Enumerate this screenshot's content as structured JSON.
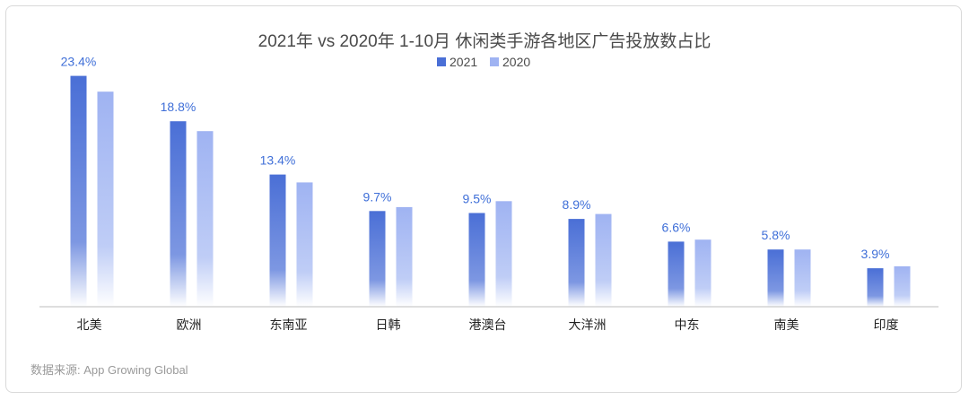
{
  "chart_data": {
    "type": "bar",
    "title": "2021年 vs 2020年 1-10月 休闲类手游各地区广告投放数占比",
    "categories": [
      "北美",
      "欧洲",
      "东南亚",
      "日韩",
      "港澳台",
      "大洋洲",
      "中东",
      "南美",
      "印度"
    ],
    "series": [
      {
        "name": "2021",
        "values": [
          23.4,
          18.8,
          13.4,
          9.7,
          9.5,
          8.9,
          6.6,
          5.8,
          3.9
        ],
        "color": "#4a6fd6"
      },
      {
        "name": "2020",
        "values": [
          21.8,
          17.8,
          12.6,
          10.1,
          10.7,
          9.4,
          6.8,
          5.8,
          4.1
        ],
        "color": "#9fb3f2"
      }
    ],
    "data_labels": [
      "23.4%",
      "18.8%",
      "13.4%",
      "9.7%",
      "9.5%",
      "8.9%",
      "6.6%",
      "5.8%",
      "3.9%"
    ],
    "ylim": [
      0,
      24
    ],
    "xlabel": "",
    "ylabel": "",
    "grid": false,
    "legend_position": "top-center",
    "label_color": "#3f6fd8"
  },
  "source": "数据来源: App Growing Global"
}
